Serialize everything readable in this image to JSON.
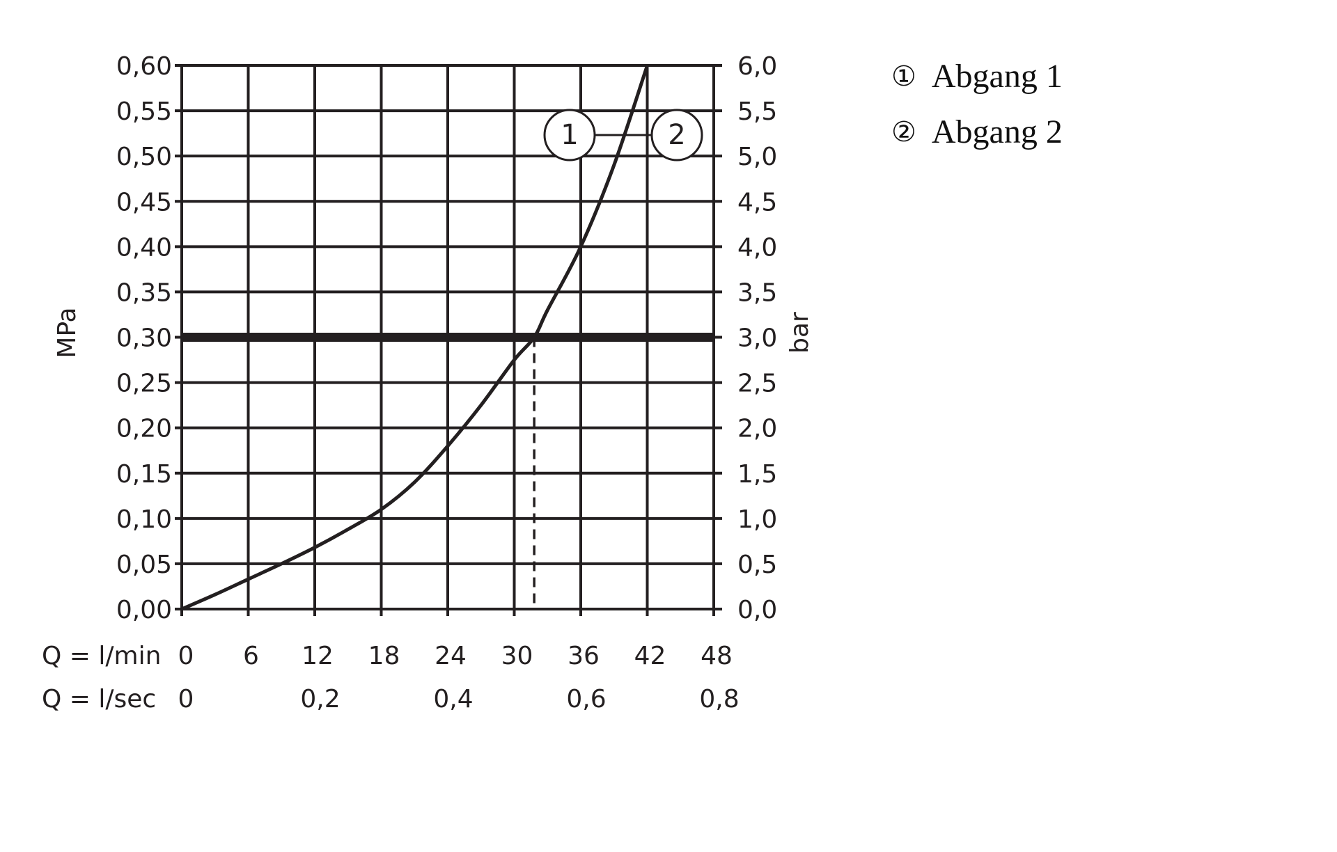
{
  "chart_data": {
    "type": "line",
    "xlabel_rows": [
      "Q = l/min",
      "Q = l/sec"
    ],
    "x_ticks_lmin": [
      "0",
      "6",
      "12",
      "18",
      "24",
      "30",
      "36",
      "42",
      "48"
    ],
    "x_ticks_lsec": [
      "0",
      "0,2",
      "0,4",
      "0,6",
      "0,8"
    ],
    "ylabel_left": "MPa",
    "ylabel_right": "bar",
    "y_ticks_left": [
      "0,00",
      "0,05",
      "0,10",
      "0,15",
      "0,20",
      "0,25",
      "0,30",
      "0,35",
      "0,40",
      "0,45",
      "0,50",
      "0,55",
      "0,60"
    ],
    "y_ticks_right": [
      "0,0",
      "0,5",
      "1,0",
      "1,5",
      "2,0",
      "2,5",
      "3,0",
      "3,5",
      "4,0",
      "4,5",
      "5,0",
      "5,5",
      "6,0"
    ],
    "xlim": [
      0,
      48
    ],
    "ylim": [
      0,
      0.6
    ],
    "grid": true,
    "reference_line_mpa": 0.3,
    "operating_point_lmin": 31.8,
    "curve_labels": [
      "1",
      "2"
    ],
    "series": [
      {
        "x": [
          0,
          3,
          6,
          9,
          12,
          15,
          18,
          21,
          24,
          27,
          30,
          31.8,
          33,
          36,
          39,
          42
        ],
        "y": [
          0,
          0.016,
          0.033,
          0.05,
          0.068,
          0.088,
          0.11,
          0.14,
          0.18,
          0.225,
          0.275,
          0.3,
          0.33,
          0.4,
          0.49,
          0.6
        ],
        "color": "#231f20"
      }
    ],
    "legend": [
      {
        "symbol": "①",
        "label": "Abgang 1"
      },
      {
        "symbol": "②",
        "label": "Abgang 2"
      }
    ],
    "legend_position": "right"
  }
}
